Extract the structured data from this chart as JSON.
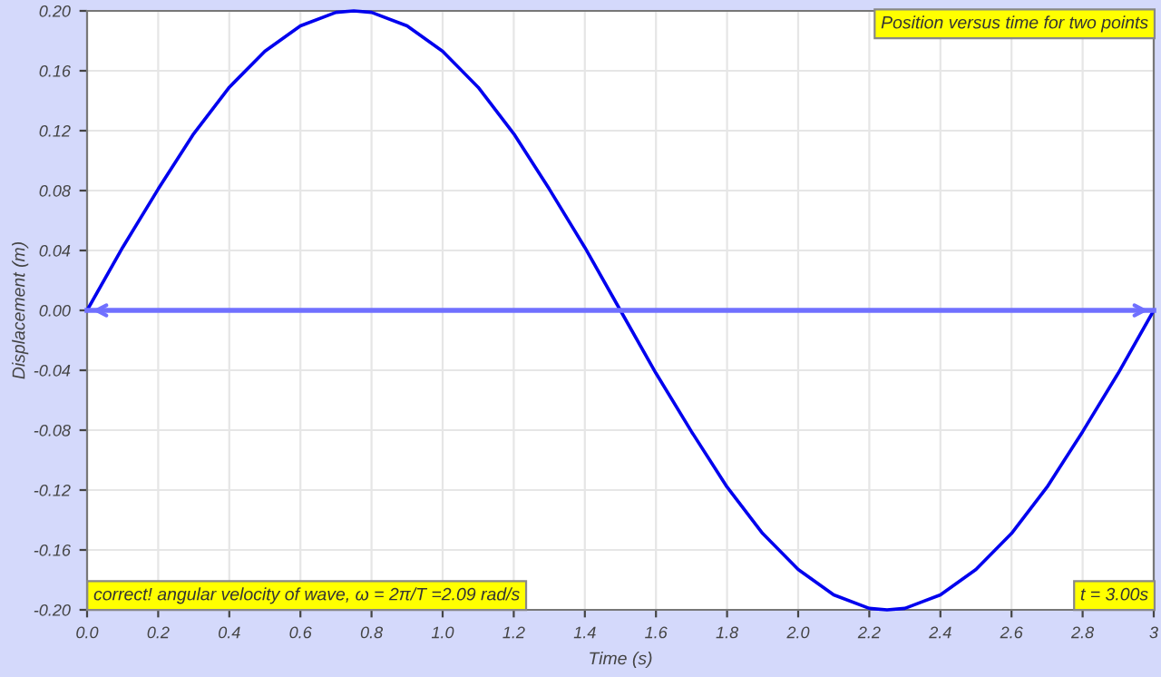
{
  "chart_data": {
    "type": "line",
    "title": "Position versus time for two points",
    "xlabel": "Time (s)",
    "ylabel": "Displacement (m)",
    "series": [
      {
        "color": "#0000ee",
        "x": [
          0,
          0.1,
          0.2,
          0.3,
          0.4,
          0.5,
          0.6,
          0.7,
          0.75,
          0.8,
          0.9,
          1.0,
          1.1,
          1.2,
          1.3,
          1.4,
          1.5,
          1.6,
          1.7,
          1.8,
          1.9,
          2.0,
          2.1,
          2.2,
          2.25,
          2.3,
          2.4,
          2.5,
          2.6,
          2.7,
          2.8,
          2.9,
          3.0
        ],
        "values": [
          0,
          0.042,
          0.081,
          0.118,
          0.149,
          0.173,
          0.19,
          0.199,
          0.2,
          0.199,
          0.19,
          0.173,
          0.149,
          0.118,
          0.081,
          0.042,
          0,
          -0.042,
          -0.081,
          -0.118,
          -0.149,
          -0.173,
          -0.19,
          -0.199,
          -0.2,
          -0.199,
          -0.19,
          -0.173,
          -0.149,
          -0.118,
          -0.081,
          -0.042,
          0
        ]
      },
      {
        "color": "#7070ff",
        "x": [
          0,
          3.0
        ],
        "values": [
          0,
          0
        ]
      }
    ],
    "annotations": [
      "correct! angular velocity of wave, ω = 2π/T =2.09 rad/s",
      "t = 3.00s"
    ],
    "xlim": [
      0,
      3.0
    ],
    "ylim": [
      -0.2,
      0.2
    ],
    "xticks": [
      {
        "value": 0,
        "label": "0.0"
      },
      {
        "value": 0.2,
        "label": "0.2"
      },
      {
        "value": 0.4,
        "label": "0.4"
      },
      {
        "value": 0.6,
        "label": "0.6"
      },
      {
        "value": 0.8,
        "label": "0.8"
      },
      {
        "value": 1.0,
        "label": "1.0"
      },
      {
        "value": 1.2,
        "label": "1.2"
      },
      {
        "value": 1.4,
        "label": "1.4"
      },
      {
        "value": 1.6,
        "label": "1.6"
      },
      {
        "value": 1.8,
        "label": "1.8"
      },
      {
        "value": 2.0,
        "label": "2.0"
      },
      {
        "value": 2.2,
        "label": "2.2"
      },
      {
        "value": 2.4,
        "label": "2.4"
      },
      {
        "value": 2.6,
        "label": "2.6"
      },
      {
        "value": 2.8,
        "label": "2.8"
      },
      {
        "value": 3.0,
        "label": "3"
      }
    ],
    "yticks": [
      {
        "value": -0.2,
        "label": "-0.20"
      },
      {
        "value": -0.16,
        "label": "-0.16"
      },
      {
        "value": -0.12,
        "label": "-0.12"
      },
      {
        "value": -0.08,
        "label": "-0.08"
      },
      {
        "value": -0.04,
        "label": "-0.04"
      },
      {
        "value": 0,
        "label": "0.00"
      },
      {
        "value": 0.04,
        "label": "0.04"
      },
      {
        "value": 0.08,
        "label": "0.08"
      },
      {
        "value": 0.12,
        "label": "0.12"
      },
      {
        "value": 0.16,
        "label": "0.16"
      },
      {
        "value": 0.2,
        "label": "0.20"
      }
    ],
    "grid": true
  }
}
